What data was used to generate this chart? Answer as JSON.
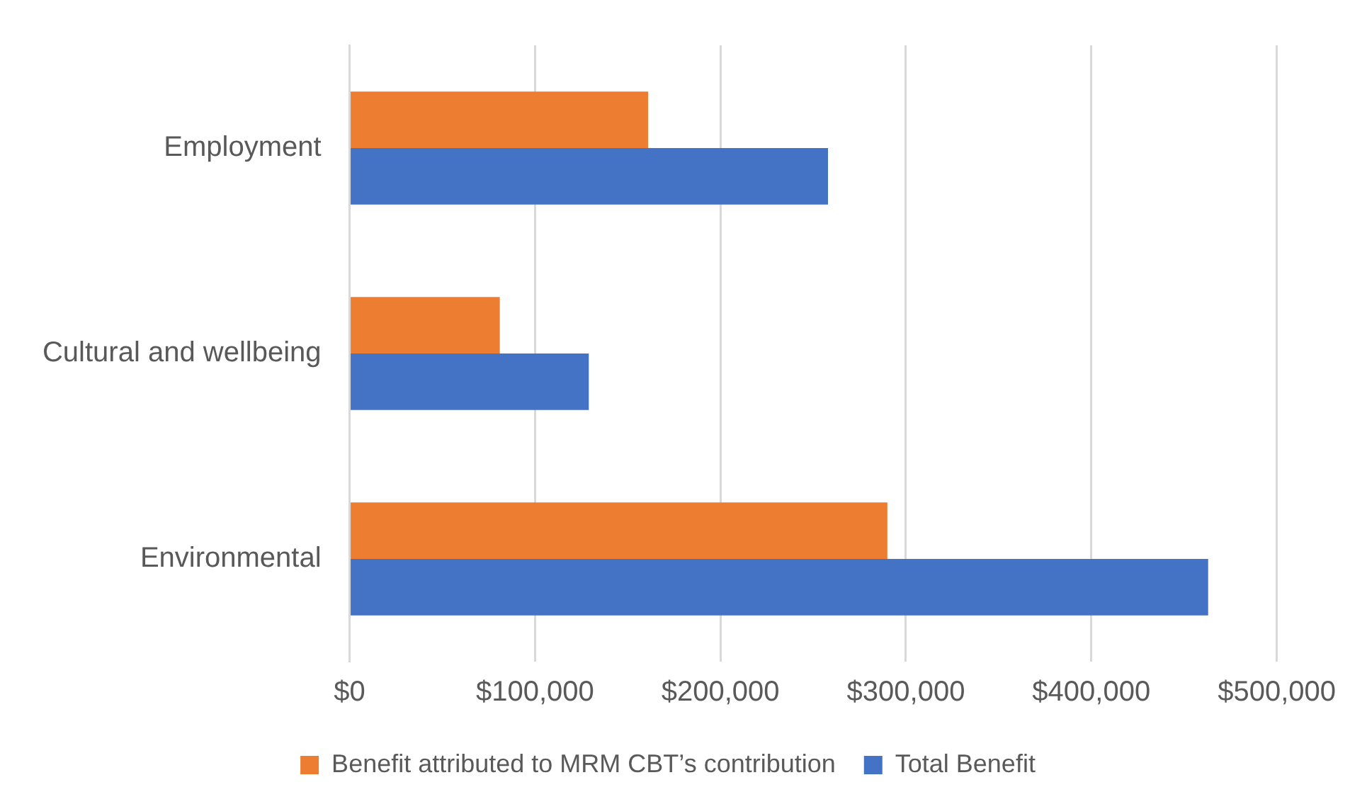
{
  "chart_data": {
    "type": "bar",
    "orientation": "horizontal",
    "categories": [
      "Employment",
      "Cultural and wellbeing",
      "Environmental"
    ],
    "series": [
      {
        "name": "Benefit attributed to MRM CBT’s contribution",
        "color": "#ed7d31",
        "values": [
          161000,
          81000,
          290000
        ]
      },
      {
        "name": "Total Benefit",
        "color": "#4472c4",
        "values": [
          258000,
          129000,
          463000
        ]
      }
    ],
    "xlim": [
      0,
      500000
    ],
    "xticks": [
      {
        "value": 0,
        "label": "$0"
      },
      {
        "value": 100000,
        "label": "$100,000"
      },
      {
        "value": 200000,
        "label": "$200,000"
      },
      {
        "value": 300000,
        "label": "$300,000"
      },
      {
        "value": 400000,
        "label": "$400,000"
      },
      {
        "value": 500000,
        "label": "$500,000"
      }
    ],
    "grid": "x",
    "legend": "bottom"
  }
}
